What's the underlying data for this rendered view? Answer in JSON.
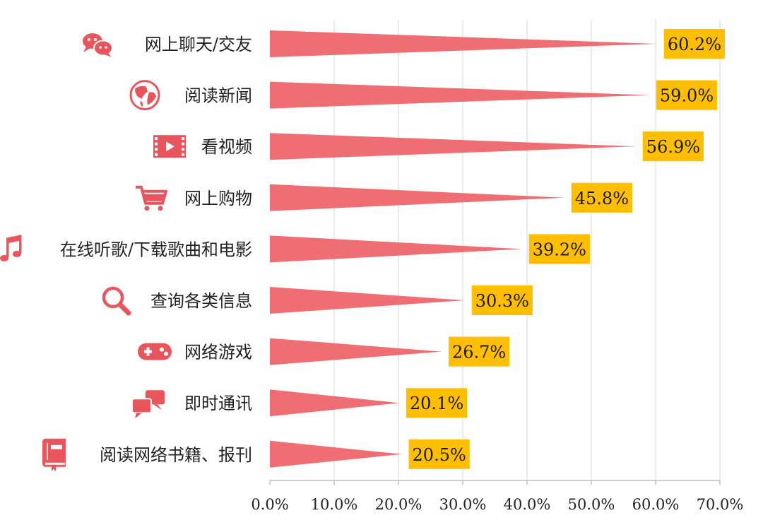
{
  "chart_data": {
    "type": "bar",
    "categories": [
      "网上聊天/交友",
      "阅读新闻",
      "看视频",
      "网上购物",
      "在线听歌/下载歌曲和电影",
      "查询各类信息",
      "网络游戏",
      "即时通讯",
      "阅读网络书籍、报刊"
    ],
    "icons": [
      "chat-bubbles-icon",
      "globe-icon",
      "video-film-icon",
      "shopping-cart-icon",
      "music-note-icon",
      "magnifier-icon",
      "gamepad-icon",
      "message-bubbles-icon",
      "book-icon"
    ],
    "values": [
      60.2,
      59.0,
      56.9,
      45.8,
      39.2,
      30.3,
      26.7,
      20.1,
      20.5
    ],
    "data_labels": [
      "60.2%",
      "59.0%",
      "56.9%",
      "45.8%",
      "39.2%",
      "30.3%",
      "26.7%",
      "20.1%",
      "20.5%"
    ],
    "xticks": [
      0,
      10,
      20,
      30,
      40,
      50,
      60,
      70
    ],
    "xtick_labels": [
      "0.0%",
      "10.0%",
      "20.0%",
      "30.0%",
      "40.0%",
      "50.0%",
      "60.0%",
      "70.0%"
    ],
    "xlim": [
      0,
      70
    ],
    "vertical_gridlines": true,
    "colors": {
      "bar": "#ee6e73",
      "icon": "#e8555c",
      "label_box": "#ffbf00",
      "grid": "#d4d4d4",
      "axis": "#bfbfbf",
      "text": "#222222"
    }
  }
}
